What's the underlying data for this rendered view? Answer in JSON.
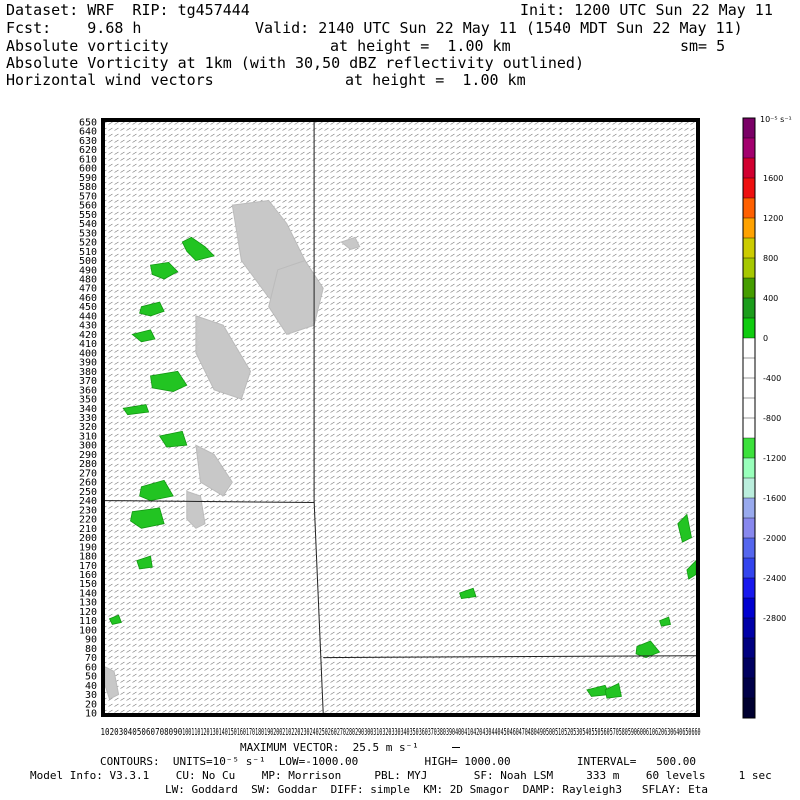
{
  "header": {
    "dataset_line": "Dataset: WRF  RIP: tg457444",
    "init_line": "Init: 1200 UTC Sun 22 May 11",
    "fcst_line": "Fcst:    9.68 h",
    "valid_line": "Valid: 2140 UTC Sun 22 May 11 (1540 MDT Sun 22 May 11)",
    "field1_name": "Absolute vorticity",
    "field1_height": "at height =  1.00 km",
    "field1_sm": "sm= 5",
    "field2_name": "Absolute Vorticity at 1km (with 30,50 dBZ reflectivity outlined)",
    "field3_name": "Horizontal wind vectors",
    "field3_height": "at height =  1.00 km"
  },
  "footer": {
    "max_vector": "MAXIMUM VECTOR:  25.5 m s⁻¹",
    "contours": "CONTOURS:  UNITS=10⁻⁵ s⁻¹  LOW=-1000.00          HIGH= 1000.00          INTERVAL=   500.00",
    "model_info": "Model Info: V3.3.1    CU: No Cu    MP: Morrison     PBL: MYJ       SF: Noah LSM     333 m    60 levels     1 sec",
    "model_info2": "LW: Goddard  SW: Goddar  DIFF: simple  KM: 2D Smagor  DAMP: Rayleigh3   SFLAY: Eta"
  },
  "chart_data": {
    "type": "heatmap",
    "y_ticks": [
      650,
      640,
      630,
      620,
      610,
      600,
      590,
      580,
      570,
      560,
      550,
      540,
      530,
      520,
      510,
      500,
      490,
      480,
      470,
      460,
      450,
      440,
      430,
      420,
      410,
      400,
      390,
      380,
      370,
      360,
      350,
      340,
      330,
      320,
      310,
      300,
      290,
      280,
      270,
      260,
      250,
      240,
      230,
      220,
      210,
      200,
      190,
      180,
      170,
      160,
      150,
      140,
      130,
      120,
      110,
      100,
      90,
      80,
      70,
      60,
      50,
      40,
      30,
      20,
      10
    ],
    "x_ticks": [
      10,
      20,
      30,
      40,
      50,
      60,
      70,
      80,
      90,
      100,
      110,
      120,
      130,
      140,
      150,
      160,
      170,
      180,
      190,
      200,
      210,
      220,
      230,
      240,
      250,
      260,
      270,
      280,
      290,
      300,
      310,
      320,
      330,
      340,
      350,
      360,
      370,
      380,
      390,
      400,
      410,
      420,
      430,
      440,
      450,
      460,
      470,
      480,
      490,
      500,
      510,
      520,
      530,
      540,
      550,
      560,
      570,
      580,
      590,
      600,
      610,
      620,
      630,
      640,
      650,
      660
    ],
    "xlim": [
      10,
      660
    ],
    "ylim": [
      10,
      650
    ],
    "colorbar": {
      "units": "10⁻⁵ s⁻¹",
      "labels": [
        "1600",
        "1200",
        "800",
        "400",
        "0",
        "-400",
        "-800",
        "-1200",
        "-1600",
        "-2000",
        "-2400",
        "-2800"
      ],
      "colors": [
        "#7a0066",
        "#a3006e",
        "#d10030",
        "#ee1010",
        "#ff6000",
        "#ffa200",
        "#cccc00",
        "#a6c800",
        "#459d00",
        "#1c9d1c",
        "#10cc10",
        "#ffffff",
        "#ffffff",
        "#ffffff",
        "#ffffff",
        "#ffffff",
        "#3ce13c",
        "#99ffbb",
        "#bbeedd",
        "#99aaee",
        "#8888ee",
        "#5566ee",
        "#3344ee",
        "#1818ee",
        "#0000d0",
        "#0000a8",
        "#000080",
        "#000060",
        "#000048",
        "#000030"
      ]
    },
    "reflectivity_regions": [
      {
        "x": [
          150,
          190,
          210,
          230,
          240,
          220,
          190,
          160
        ],
        "y": [
          560,
          565,
          540,
          500,
          470,
          440,
          460,
          500
        ]
      },
      {
        "x": [
          200,
          230,
          250,
          240,
          210,
          190
        ],
        "y": [
          490,
          500,
          470,
          430,
          420,
          450
        ]
      },
      {
        "x": [
          110,
          140,
          170,
          160,
          130,
          110
        ],
        "y": [
          440,
          430,
          380,
          350,
          360,
          400
        ]
      },
      {
        "x": [
          110,
          130,
          150,
          140,
          115
        ],
        "y": [
          300,
          290,
          260,
          245,
          260
        ]
      },
      {
        "x": [
          100,
          115,
          120,
          110,
          100
        ],
        "y": [
          250,
          245,
          215,
          210,
          220
        ]
      },
      {
        "x": [
          10,
          20,
          25,
          15,
          10
        ],
        "y": [
          60,
          55,
          30,
          25,
          40
        ]
      },
      {
        "x": [
          270,
          285,
          290,
          280
        ],
        "y": [
          520,
          525,
          515,
          512
        ]
      }
    ],
    "vorticity_spots": [
      {
        "x": [
          95,
          105,
          120,
          130,
          110,
          100
        ],
        "y": [
          520,
          525,
          515,
          505,
          500,
          510
        ]
      },
      {
        "x": [
          60,
          80,
          90,
          75,
          62
        ],
        "y": [
          495,
          498,
          488,
          480,
          485
        ]
      },
      {
        "x": [
          50,
          70,
          75,
          60,
          48
        ],
        "y": [
          450,
          455,
          445,
          440,
          443
        ]
      },
      {
        "x": [
          40,
          60,
          65,
          50
        ],
        "y": [
          420,
          425,
          415,
          412
        ]
      },
      {
        "x": [
          60,
          90,
          100,
          85,
          62
        ],
        "y": [
          375,
          380,
          365,
          358,
          362
        ]
      },
      {
        "x": [
          30,
          55,
          58,
          35
        ],
        "y": [
          340,
          344,
          336,
          333
        ]
      },
      {
        "x": [
          70,
          95,
          100,
          78
        ],
        "y": [
          310,
          315,
          300,
          298
        ]
      },
      {
        "x": [
          50,
          75,
          85,
          60,
          48
        ],
        "y": [
          255,
          262,
          245,
          240,
          245
        ]
      },
      {
        "x": [
          40,
          70,
          75,
          50,
          38
        ],
        "y": [
          228,
          232,
          215,
          210,
          218
        ]
      },
      {
        "x": [
          45,
          60,
          62,
          48
        ],
        "y": [
          175,
          180,
          168,
          166
        ]
      },
      {
        "x": [
          15,
          25,
          28,
          18
        ],
        "y": [
          112,
          116,
          108,
          106
        ]
      },
      {
        "x": [
          595,
          610,
          620,
          605,
          594
        ],
        "y": [
          82,
          88,
          76,
          70,
          74
        ]
      },
      {
        "x": [
          540,
          560,
          565,
          545
        ],
        "y": [
          35,
          40,
          30,
          28
        ]
      },
      {
        "x": [
          640,
          650,
          655,
          645
        ],
        "y": [
          215,
          225,
          200,
          195
        ]
      },
      {
        "x": [
          650,
          660,
          660,
          652
        ],
        "y": [
          165,
          175,
          160,
          155
        ]
      },
      {
        "x": [
          400,
          415,
          418,
          402
        ],
        "y": [
          140,
          145,
          136,
          134
        ]
      },
      {
        "x": [
          620,
          630,
          632,
          622
        ],
        "y": [
          110,
          114,
          106,
          104
        ]
      },
      {
        "x": [
          560,
          575,
          578,
          562
        ],
        "y": [
          35,
          42,
          28,
          26
        ]
      }
    ],
    "boundaries": [
      {
        "x": [
          240,
          240,
          250
        ],
        "y": [
          650,
          240,
          10
        ]
      },
      {
        "x": [
          10,
          240
        ],
        "y": [
          240,
          238
        ]
      },
      {
        "x": [
          250,
          660
        ],
        "y": [
          70,
          72
        ]
      }
    ]
  }
}
